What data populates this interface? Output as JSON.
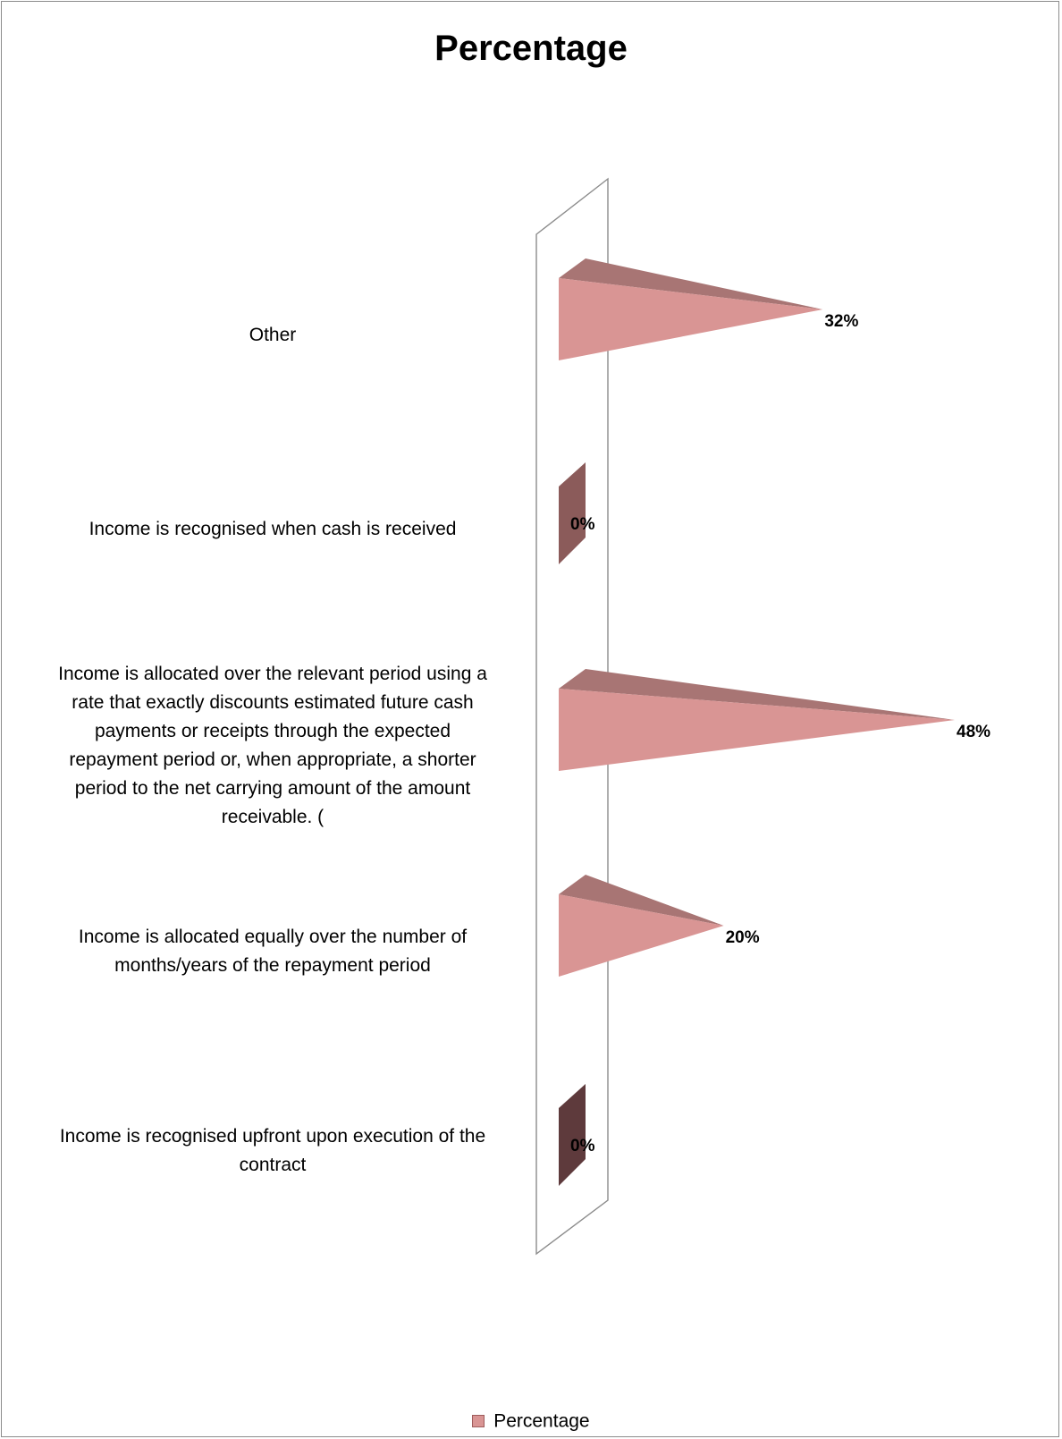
{
  "chart_data": {
    "type": "bar",
    "orientation": "horizontal",
    "title": "Percentage",
    "categories": [
      "Other",
      "Income is recognised when cash is received",
      "Income is allocated over the relevant period using a rate that exactly discounts estimated future cash payments or receipts through the expected repayment period or, when appropriate, a shorter period to the net carrying amount of the amount receivable. (",
      "Income is allocated equally over the number of months/years of the repayment period",
      "Income is recognised upfront upon execution of the contract"
    ],
    "category_lines": [
      [
        "Other"
      ],
      [
        "Income is recognised when cash is received"
      ],
      [
        "Income is allocated over the relevant period using a",
        "rate that exactly discounts estimated future cash",
        "payments or receipts through the expected",
        "repayment period or, when appropriate, a shorter",
        "period to the net carrying amount of the amount",
        "receivable. ("
      ],
      [
        "Income is allocated equally over the number of",
        "months/years of the repayment period"
      ],
      [
        "Income is recognised upfront upon execution of the",
        "contract"
      ]
    ],
    "series": [
      {
        "name": "Percentage",
        "values": [
          32,
          0,
          48,
          20,
          0
        ],
        "data_labels": [
          "32%",
          "0%",
          "48%",
          "20%",
          "0%"
        ]
      }
    ],
    "xlim": [
      0,
      50
    ],
    "legend": "bottom",
    "grid": false,
    "colors": {
      "front": "#d99594",
      "top": "#a87574",
      "zero_a": "#8b5b5a",
      "zero_b": "#5e3a3c",
      "wall": "#8c8c8c"
    }
  }
}
